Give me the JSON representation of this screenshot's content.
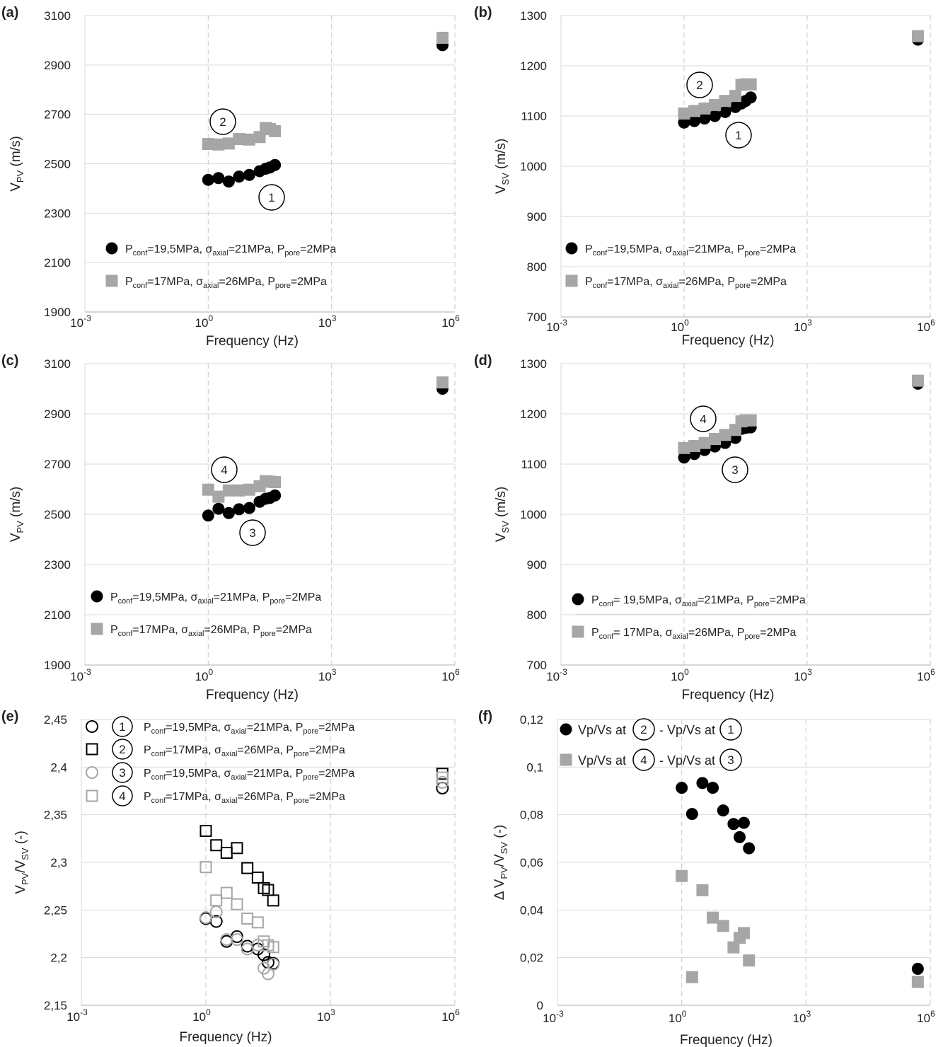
{
  "chart_data": [
    {
      "panel": "(a)",
      "type": "scatter",
      "xscale": "log",
      "ylabel": "V",
      "ylabel_sub": "PV",
      "ylabel_unit": " (m/s)",
      "xlabel": "Frequency (Hz)",
      "xticks": [
        "10",
        "10",
        "10",
        "10"
      ],
      "xtick_exp": [
        "-3",
        "0",
        "3",
        "6"
      ],
      "yticks": [
        "1900",
        "2100",
        "2300",
        "2500",
        "2700",
        "2900",
        "3100"
      ],
      "ylim": [
        1900,
        3100
      ],
      "series": [
        {
          "marker": "circle-filled",
          "color": "#000000",
          "legend_main": "P",
          "legend_parts": [
            {
              "t": "P"
            },
            {
              "s": "conf"
            },
            {
              "t": "=19,5MPa, σ"
            },
            {
              "s": "axial"
            },
            {
              "t": "=21MPa, P"
            },
            {
              "s": "pore"
            },
            {
              "t": "=2MPa"
            }
          ],
          "x": [
            1,
            1.78,
            3.16,
            5.62,
            10,
            17.8,
            25,
            31.6,
            42
          ],
          "y": [
            2435,
            2442,
            2428,
            2448,
            2455,
            2470,
            2480,
            2485,
            2495
          ],
          "x_hf": 500000,
          "y_hf": 2980
        },
        {
          "marker": "square-filled",
          "color": "#a6a6a6",
          "legend_parts": [
            {
              "t": "P"
            },
            {
              "s": "conf"
            },
            {
              "t": "=17MPa, σ"
            },
            {
              "s": "axial"
            },
            {
              "t": "=26MPa, P"
            },
            {
              "s": "pore"
            },
            {
              "t": "=2MPa"
            }
          ],
          "x": [
            1,
            1.78,
            3.16,
            5.62,
            10,
            17.8,
            25,
            31.6,
            42
          ],
          "y": [
            2580,
            2578,
            2582,
            2600,
            2598,
            2608,
            2645,
            2640,
            2632
          ],
          "x_hf": 500000,
          "y_hf": 3010
        }
      ],
      "labels": [
        {
          "text": "2",
          "x": 1.5,
          "y": 2685
        },
        {
          "text": "1",
          "x": 15,
          "y": 2360
        }
      ]
    },
    {
      "panel": "(b)",
      "type": "scatter",
      "xscale": "log",
      "ylabel": "V",
      "ylabel_sub": "SV",
      "ylabel_unit": " (m/s)",
      "xlabel": "Frequency (Hz)",
      "xticks": [
        "10",
        "10",
        "10",
        "10"
      ],
      "xtick_exp": [
        "-3",
        "0",
        "3",
        "6"
      ],
      "yticks": [
        "700",
        "800",
        "900",
        "1000",
        "1100",
        "1200",
        "1300"
      ],
      "ylim": [
        700,
        1300
      ],
      "series": [
        {
          "marker": "circle-filled",
          "color": "#000000",
          "legend_parts": [
            {
              "t": "P"
            },
            {
              "s": "conf"
            },
            {
              "t": "=19,5MPa, σ"
            },
            {
              "s": "axial"
            },
            {
              "t": "=21MPa, P"
            },
            {
              "s": "pore"
            },
            {
              "t": "=2MPa"
            }
          ],
          "x": [
            1,
            1.78,
            3.16,
            5.62,
            10,
            17.8,
            25,
            31.6,
            42
          ],
          "y": [
            1087,
            1090,
            1095,
            1100,
            1108,
            1118,
            1125,
            1130,
            1137
          ],
          "x_hf": 500000,
          "y_hf": 1252
        },
        {
          "marker": "square-filled",
          "color": "#a6a6a6",
          "legend_parts": [
            {
              "t": "P"
            },
            {
              "s": "conf"
            },
            {
              "t": "=17MPa, σ"
            },
            {
              "s": "axial"
            },
            {
              "t": "=26MPa, P"
            },
            {
              "s": "pore"
            },
            {
              "t": "=2MPa"
            }
          ],
          "x": [
            1,
            1.78,
            3.16,
            5.62,
            10,
            17.8,
            25,
            31.6,
            42
          ],
          "y": [
            1105,
            1110,
            1115,
            1122,
            1130,
            1140,
            1162,
            1163,
            1163
          ],
          "x_hf": 500000,
          "y_hf": 1259
        }
      ],
      "labels": [
        {
          "text": "2",
          "x": 2.2,
          "y": 1161
        },
        {
          "text": "1",
          "x": 12,
          "y": 1061
        }
      ]
    },
    {
      "panel": "(c)",
      "type": "scatter",
      "xscale": "log",
      "ylabel": "V",
      "ylabel_sub": "PV",
      "ylabel_unit": " (m/s)",
      "xlabel": "Frequency (Hz)",
      "xticks": [
        "10",
        "10",
        "10",
        "10"
      ],
      "xtick_exp": [
        "-3",
        "0",
        "3",
        "6"
      ],
      "yticks": [
        "1900",
        "2100",
        "2300",
        "2500",
        "2700",
        "2900",
        "3100"
      ],
      "ylim": [
        1900,
        3100
      ],
      "series": [
        {
          "marker": "circle-filled",
          "color": "#000000",
          "legend_parts": [
            {
              "t": "P"
            },
            {
              "s": "conf"
            },
            {
              "t": "=19,5MPa, σ"
            },
            {
              "s": "axial"
            },
            {
              "t": "=21MPa, P"
            },
            {
              "s": "pore"
            },
            {
              "t": "=2MPa"
            }
          ],
          "x": [
            1,
            1.78,
            3.16,
            5.62,
            10,
            17.8,
            25,
            31.6,
            42
          ],
          "y": [
            2495,
            2522,
            2505,
            2520,
            2525,
            2550,
            2562,
            2565,
            2575
          ],
          "x_hf": 500000,
          "y_hf": 3000
        },
        {
          "marker": "square-filled",
          "color": "#a6a6a6",
          "legend_parts": [
            {
              "t": "P"
            },
            {
              "s": "conf"
            },
            {
              "t": "=17MPa, σ"
            },
            {
              "s": "axial"
            },
            {
              "t": "=26MPa, P"
            },
            {
              "s": "pore"
            },
            {
              "t": "=2MPa"
            }
          ],
          "x": [
            1,
            1.78,
            3.16,
            5.62,
            10,
            17.8,
            25,
            31.6,
            42
          ],
          "y": [
            2598,
            2570,
            2595,
            2595,
            2598,
            2612,
            2632,
            2630,
            2628
          ],
          "x_hf": 500000,
          "y_hf": 3025
        }
      ],
      "labels": [
        {
          "text": "4",
          "x": 2.0,
          "y": 2680
        },
        {
          "text": "3",
          "x": 7,
          "y": 2435
        }
      ]
    },
    {
      "panel": "(d)",
      "type": "scatter",
      "xscale": "log",
      "ylabel": "V",
      "ylabel_sub": "SV",
      "ylabel_unit": " (m/s)",
      "xlabel": "Frequency (Hz)",
      "xticks": [
        "10",
        "10",
        "10",
        "10"
      ],
      "xtick_exp": [
        "-3",
        "0",
        "3",
        "6"
      ],
      "yticks": [
        "700",
        "800",
        "900",
        "1000",
        "1100",
        "1200",
        "1300"
      ],
      "ylim": [
        700,
        1300
      ],
      "series": [
        {
          "marker": "circle-filled",
          "color": "#000000",
          "legend_parts": [
            {
              "t": "P"
            },
            {
              "s": "conf"
            },
            {
              "t": "= 19,5MPa, σ"
            },
            {
              "s": "axial"
            },
            {
              "t": "=21MPa, P"
            },
            {
              "s": "pore"
            },
            {
              "t": "=2MPa"
            }
          ],
          "x": [
            1,
            1.78,
            3.16,
            5.62,
            10,
            17.8,
            25,
            31.6,
            42
          ],
          "y": [
            1113,
            1120,
            1128,
            1135,
            1142,
            1152,
            1170,
            1172,
            1173
          ],
          "x_hf": 500000,
          "y_hf": 1260
        },
        {
          "marker": "square-filled",
          "color": "#a6a6a6",
          "legend_parts": [
            {
              "t": "P"
            },
            {
              "s": "conf"
            },
            {
              "t": "= 17MPa, σ"
            },
            {
              "s": "axial"
            },
            {
              "t": "=26MPa, P"
            },
            {
              "s": "pore"
            },
            {
              "t": "=2MPa"
            }
          ],
          "x": [
            1,
            1.78,
            3.16,
            5.62,
            10,
            17.8,
            25,
            31.6,
            42
          ],
          "y": [
            1132,
            1136,
            1142,
            1150,
            1158,
            1168,
            1185,
            1187,
            1187
          ],
          "x_hf": 500000,
          "y_hf": 1266
        }
      ],
      "labels": [
        {
          "text": "4",
          "x": 2.3,
          "y": 1191
        },
        {
          "text": "3",
          "x": 9.5,
          "y": 1091
        }
      ]
    },
    {
      "panel": "(e)",
      "type": "scatter",
      "xscale": "log",
      "ylabel": "V",
      "ylabel_sub": "PV",
      "ylabel_mid": "/V",
      "ylabel_sub2": "SV",
      "ylabel_unit": " (-)",
      "xlabel": "Frequency (Hz)",
      "xticks": [
        "10",
        "10",
        "10",
        "10"
      ],
      "xtick_exp": [
        "-3",
        "0",
        "3",
        "6"
      ],
      "yticks": [
        "2,15",
        "2,2",
        "2,25",
        "2,3",
        "2,35",
        "2,4",
        "2,45"
      ],
      "ylim": [
        2.15,
        2.45
      ],
      "series": [
        {
          "marker": "circle-open",
          "color": "#000000",
          "num": "1",
          "legend_parts": [
            {
              "t": "P"
            },
            {
              "s": "conf"
            },
            {
              "t": "=19,5MPa, σ"
            },
            {
              "s": "axial"
            },
            {
              "t": "=21MPa, P"
            },
            {
              "s": "pore"
            },
            {
              "t": "=2MPa"
            }
          ],
          "x": [
            1,
            1.78,
            3.16,
            5.62,
            10,
            17.8,
            25,
            31.6,
            42
          ],
          "y": [
            2.241,
            2.238,
            2.217,
            2.222,
            2.212,
            2.209,
            2.203,
            2.195,
            2.194
          ],
          "x_hf": 500000,
          "y_hf": 2.378
        },
        {
          "marker": "square-open",
          "color": "#000000",
          "num": "2",
          "legend_parts": [
            {
              "t": "P"
            },
            {
              "s": "conf"
            },
            {
              "t": "=17MPa, σ"
            },
            {
              "s": "axial"
            },
            {
              "t": "=26MPa, P"
            },
            {
              "s": "pore"
            },
            {
              "t": "=2MPa"
            }
          ],
          "x": [
            1,
            1.78,
            3.16,
            5.62,
            10,
            17.8,
            25,
            31.6,
            42
          ],
          "y": [
            2.333,
            2.318,
            2.31,
            2.315,
            2.294,
            2.284,
            2.273,
            2.271,
            2.26
          ],
          "x_hf": 500000,
          "y_hf": 2.393
        },
        {
          "marker": "circle-open",
          "color": "#a6a6a6",
          "num": "3",
          "legend_parts": [
            {
              "t": "P"
            },
            {
              "s": "conf"
            },
            {
              "t": "=19,5MPa, σ"
            },
            {
              "s": "axial"
            },
            {
              "t": "=21MPa, P"
            },
            {
              "s": "pore"
            },
            {
              "t": "=2MPa"
            }
          ],
          "x": [
            1,
            1.78,
            3.16,
            5.62,
            10,
            17.8,
            25,
            31.6,
            42
          ],
          "y": [
            2.242,
            2.248,
            2.219,
            2.219,
            2.209,
            2.213,
            2.189,
            2.183,
            2.193
          ],
          "x_hf": 500000,
          "y_hf": 2.384
        },
        {
          "marker": "square-open",
          "color": "#a6a6a6",
          "num": "4",
          "legend_parts": [
            {
              "t": "P"
            },
            {
              "s": "conf"
            },
            {
              "t": "=17MPa, σ"
            },
            {
              "s": "axial"
            },
            {
              "t": "=26MPa, P"
            },
            {
              "s": "pore"
            },
            {
              "t": "=2MPa"
            }
          ],
          "x": [
            1,
            1.78,
            3.16,
            5.62,
            10,
            17.8,
            25,
            31.6,
            42
          ],
          "y": [
            2.295,
            2.26,
            2.268,
            2.256,
            2.241,
            2.237,
            2.217,
            2.213,
            2.211
          ],
          "x_hf": 500000,
          "y_hf": 2.389
        }
      ],
      "labels": []
    },
    {
      "panel": "(f)",
      "type": "scatter",
      "xscale": "log",
      "ylabel": "Δ V",
      "ylabel_sub": "PV",
      "ylabel_mid": "/V",
      "ylabel_sub2": "SV",
      "ylabel_unit": " (-)",
      "xlabel": "Frequency (Hz)",
      "xticks": [
        "10",
        "10",
        "10",
        "10"
      ],
      "xtick_exp": [
        "-3",
        "0",
        "3",
        "6"
      ],
      "yticks": [
        "0",
        "0,02",
        "0,04",
        "0,06",
        "0,08",
        "0,1",
        "0,12"
      ],
      "ylim": [
        0,
        0.12
      ],
      "series": [
        {
          "marker": "circle-filled",
          "color": "#000000",
          "legend_a": "Vp/Vs at",
          "legend_n1": "2",
          "legend_b": "- Vp/Vs at",
          "legend_n2": "1",
          "x": [
            1,
            1.78,
            3.16,
            5.62,
            10,
            17.8,
            25,
            31.6,
            42
          ],
          "y": [
            0.0913,
            0.0803,
            0.0933,
            0.0913,
            0.0818,
            0.0761,
            0.0706,
            0.0766,
            0.0659
          ],
          "x_hf": 500000,
          "y_hf": 0.0153
        },
        {
          "marker": "square-filled",
          "color": "#a6a6a6",
          "legend_a": "Vp/Vs at",
          "legend_n1": "4",
          "legend_b": "- Vp/Vs at",
          "legend_n2": "3",
          "x": [
            1,
            1.78,
            3.16,
            5.62,
            10,
            17.8,
            25,
            31.6,
            42
          ],
          "y": [
            0.0543,
            0.0118,
            0.0483,
            0.0368,
            0.0333,
            0.0243,
            0.0283,
            0.0303,
            0.0188
          ],
          "x_hf": 500000,
          "y_hf": 0.0098
        }
      ],
      "labels": []
    }
  ]
}
